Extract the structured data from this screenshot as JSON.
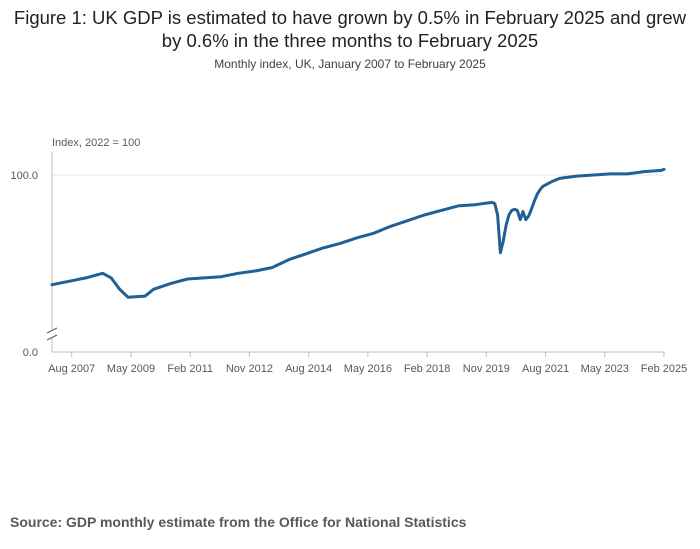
{
  "title": "Figure 1: UK GDP is estimated to have grown by 0.5% in February 2025 and grew by 0.6% in the three months to February 2025",
  "subtitle": "Monthly index, UK, January 2007 to February 2025",
  "source": "Source: GDP monthly estimate from the Office for National Statistics",
  "colors": {
    "line": "#206095",
    "grid": "#e5e5e5",
    "axis": "#bebebe",
    "text": "#595959"
  },
  "chart_data": {
    "type": "line",
    "ylabel": "Index, 2022 = 100",
    "ylim": [
      0,
      100
    ],
    "y_ticks": [
      "0.0",
      "100.0"
    ],
    "y_axis_break": true,
    "x_tick_labels": [
      "Aug 2007",
      "May 2009",
      "Feb 2011",
      "Nov 2012",
      "Aug 2014",
      "May 2016",
      "Feb 2018",
      "Nov 2019",
      "Aug 2021",
      "May 2023",
      "Feb 2025"
    ],
    "grid": "horizontal",
    "series": [
      {
        "x": [
          "Jan 2007",
          "Jul 2007",
          "Jan 2008",
          "Apr 2008",
          "Jul 2008",
          "Oct 2008",
          "Jan 2009",
          "Apr 2009",
          "Jul 2009",
          "Oct 2009",
          "Jan 2010",
          "Jul 2010",
          "Jan 2011",
          "Jul 2011",
          "Jan 2012",
          "Jul 2012",
          "Jan 2013",
          "Jul 2013",
          "Jan 2014",
          "Jul 2014",
          "Jan 2015",
          "Jul 2015",
          "Jan 2016",
          "Jul 2016",
          "Jan 2017",
          "Jul 2017",
          "Jan 2018",
          "Jul 2018",
          "Jan 2019",
          "Jul 2019",
          "Jan 2020",
          "Feb 2020",
          "Mar 2020",
          "Apr 2020",
          "May 2020",
          "Jun 2020",
          "Jul 2020",
          "Aug 2020",
          "Sep 2020",
          "Oct 2020",
          "Nov 2020",
          "Dec 2020",
          "Jan 2021",
          "Feb 2021",
          "Mar 2021",
          "Apr 2021",
          "May 2021",
          "Jun 2021",
          "Jul 2021",
          "Oct 2021",
          "Jan 2022",
          "Jul 2022",
          "Jan 2023",
          "Jul 2023",
          "Jan 2024",
          "Jul 2024",
          "Jan 2025",
          "Feb 2025"
        ],
        "values": [
          52.0,
          53.5,
          55.0,
          56.0,
          57.0,
          55.0,
          50.0,
          46.5,
          46.8,
          47.0,
          50.0,
          52.5,
          54.5,
          55.0,
          55.5,
          57.0,
          58.0,
          59.5,
          63.0,
          65.5,
          68.0,
          70.0,
          72.5,
          74.5,
          77.5,
          80.0,
          82.5,
          84.5,
          86.5,
          87.0,
          88.0,
          87.5,
          82.5,
          66.0,
          71.0,
          78.0,
          82.5,
          84.5,
          85.0,
          84.5,
          80.5,
          84.0,
          80.5,
          82.0,
          85.0,
          88.5,
          91.5,
          93.5,
          95.0,
          97.0,
          98.5,
          99.5,
          100.0,
          100.5,
          100.5,
          101.5,
          102.0,
          102.5
        ]
      }
    ]
  }
}
